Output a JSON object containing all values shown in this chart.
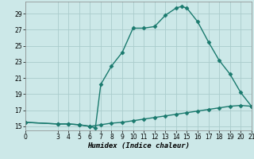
{
  "title": "",
  "xlabel": "Humidex (Indice chaleur)",
  "ylabel": "",
  "background_color": "#cce8e8",
  "grid_color": "#aacccc",
  "line_color": "#1a7a6e",
  "line1_x": [
    0,
    3,
    4,
    5,
    6,
    6.5,
    7,
    8,
    9,
    10,
    11,
    12,
    13,
    14,
    14.5,
    15,
    16,
    17,
    18,
    19,
    20,
    21
  ],
  "line1_y": [
    15.5,
    15.3,
    15.3,
    15.2,
    15.0,
    14.8,
    20.2,
    22.5,
    24.2,
    27.2,
    27.2,
    27.4,
    28.8,
    29.7,
    29.9,
    29.7,
    28.0,
    25.5,
    23.2,
    21.5,
    19.2,
    17.5
  ],
  "line2_x": [
    0,
    3,
    4,
    5,
    6,
    7,
    8,
    9,
    10,
    11,
    12,
    13,
    14,
    15,
    16,
    17,
    18,
    19,
    20,
    21
  ],
  "line2_y": [
    15.5,
    15.3,
    15.3,
    15.2,
    15.0,
    15.2,
    15.4,
    15.5,
    15.7,
    15.9,
    16.1,
    16.3,
    16.5,
    16.7,
    16.9,
    17.1,
    17.3,
    17.5,
    17.6,
    17.5
  ],
  "xlim": [
    0,
    21
  ],
  "ylim": [
    14.5,
    30.5
  ],
  "xticks": [
    0,
    3,
    4,
    5,
    6,
    7,
    8,
    9,
    10,
    11,
    12,
    13,
    14,
    15,
    16,
    17,
    18,
    19,
    20,
    21
  ],
  "yticks": [
    15,
    17,
    19,
    21,
    23,
    25,
    27,
    29
  ],
  "marker": "D",
  "markersize": 2.5,
  "linewidth": 1.0,
  "axis_fontsize": 6.5,
  "tick_fontsize": 5.5
}
